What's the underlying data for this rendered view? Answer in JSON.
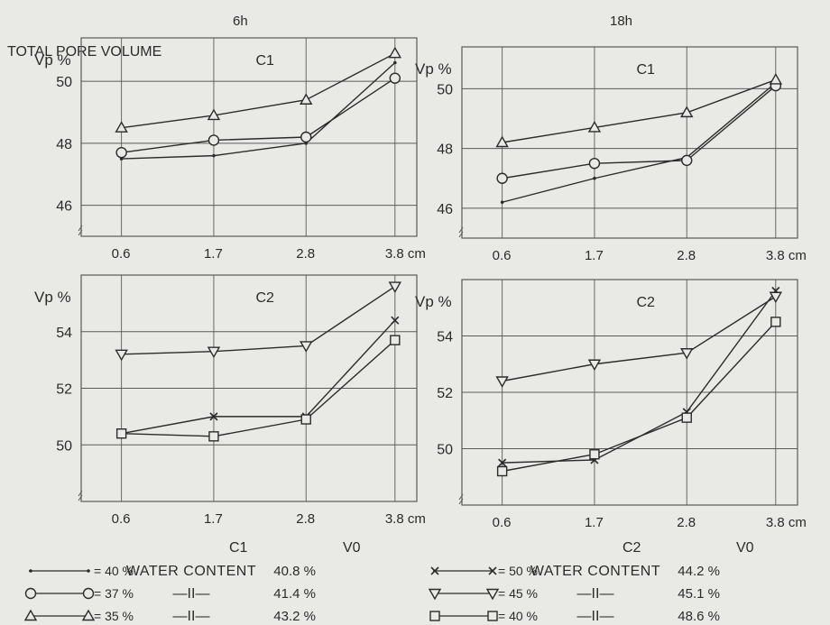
{
  "header": {
    "left": "6h",
    "right": "18h",
    "total": "TOTAL PORE VOLUME"
  },
  "x_ticks": [
    "0.6",
    "1.7",
    "2.8",
    "3.8 cm"
  ],
  "colors": {
    "background": "#e9e9e6",
    "ink": "#2b2b2b",
    "grid": "#5a5a5a"
  },
  "chart_data": [
    {
      "type": "line",
      "panel": "6h-C1",
      "ylabel": "Vp %",
      "label": "C1",
      "x": [
        0.6,
        1.7,
        2.8,
        3.8
      ],
      "yticks": [
        "46",
        "48",
        "50"
      ],
      "series": [
        {
          "name": "= 40 %",
          "marker": "dot",
          "values": [
            47.5,
            47.6,
            48.0,
            50.6
          ]
        },
        {
          "name": "= 37 %",
          "marker": "circle",
          "values": [
            47.7,
            48.1,
            48.2,
            50.1
          ]
        },
        {
          "name": "= 35 %",
          "marker": "triangle-up",
          "values": [
            48.5,
            48.9,
            49.4,
            50.9
          ]
        }
      ]
    },
    {
      "type": "line",
      "panel": "18h-C1",
      "ylabel": "Vp %",
      "label": "C1",
      "x": [
        0.6,
        1.7,
        2.8,
        3.8
      ],
      "yticks": [
        "46",
        "48",
        "50"
      ],
      "series": [
        {
          "name": "= 40 %",
          "marker": "dot",
          "values": [
            46.2,
            47.0,
            47.7,
            50.2
          ]
        },
        {
          "name": "= 37 %",
          "marker": "circle",
          "values": [
            47.0,
            47.5,
            47.6,
            50.1
          ]
        },
        {
          "name": "= 35 %",
          "marker": "triangle-up",
          "values": [
            48.2,
            48.7,
            49.2,
            50.3
          ]
        }
      ]
    },
    {
      "type": "line",
      "panel": "6h-C2",
      "ylabel": "Vp %",
      "label": "C2",
      "x": [
        0.6,
        1.7,
        2.8,
        3.8
      ],
      "yticks": [
        "50",
        "52",
        "54"
      ],
      "series": [
        {
          "name": "= 50 %",
          "marker": "cross",
          "values": [
            50.4,
            51.0,
            51.0,
            54.4
          ]
        },
        {
          "name": "= 45 %",
          "marker": "triangle-down",
          "values": [
            53.2,
            53.3,
            53.5,
            55.6
          ]
        },
        {
          "name": "= 40 %",
          "marker": "square",
          "values": [
            50.4,
            50.3,
            50.9,
            53.7
          ]
        }
      ]
    },
    {
      "type": "line",
      "panel": "18h-C2",
      "ylabel": "Vp %",
      "label": "C2",
      "x": [
        0.6,
        1.7,
        2.8,
        3.8
      ],
      "yticks": [
        "50",
        "52",
        "54"
      ],
      "series": [
        {
          "name": "= 50 %",
          "marker": "cross",
          "values": [
            49.5,
            49.6,
            51.3,
            55.6
          ]
        },
        {
          "name": "= 45 %",
          "marker": "triangle-down",
          "values": [
            52.4,
            53.0,
            53.4,
            55.4
          ]
        },
        {
          "name": "= 40 %",
          "marker": "square",
          "values": [
            49.2,
            49.8,
            51.1,
            54.5
          ]
        }
      ]
    }
  ],
  "legend": {
    "c1": {
      "title": "C1",
      "v0": "V0",
      "rows": [
        {
          "marker": "dot",
          "label": "= 40 %",
          "text": "WATER CONTENT",
          "value": "40.8 %"
        },
        {
          "marker": "circle",
          "label": "= 37 %",
          "text": "—II—",
          "value": "41.4 %"
        },
        {
          "marker": "triangle-up",
          "label": "= 35 %",
          "text": "—II—",
          "value": "43.2 %"
        }
      ]
    },
    "c2": {
      "title": "C2",
      "v0": "V0",
      "rows": [
        {
          "marker": "cross",
          "label": "= 50 %",
          "text": "WATER CONTENT",
          "value": "44.2 %"
        },
        {
          "marker": "triangle-down",
          "label": "= 45 %",
          "text": "—II—",
          "value": "45.1 %"
        },
        {
          "marker": "square",
          "label": "= 40 %",
          "text": "—II—",
          "value": "48.6 %"
        }
      ]
    }
  }
}
